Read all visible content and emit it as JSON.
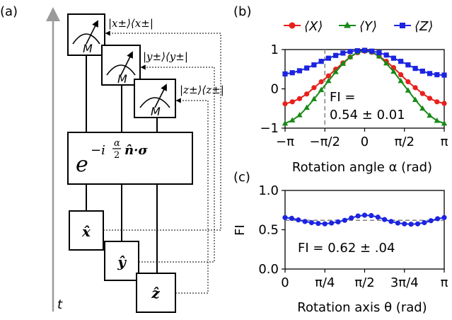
{
  "circuit": {
    "panel_label": "(a)",
    "time_label": "t",
    "meter_label": "M",
    "proj_x": "|x±⟩⟨x±|",
    "proj_y": "|y±⟩⟨y±|",
    "proj_z": "|z±⟩⟨z±|",
    "gate_base": "e",
    "gate_exponent": "−i α/2 n̂·σ",
    "gate_sign": "−i",
    "gate_frac_num": "α",
    "gate_frac_den": "2",
    "gate_vec": "n̂·σ",
    "input_x": "x̂",
    "input_y": "ŷ",
    "input_z": "ẑ"
  },
  "chart_data": [
    {
      "panel_label": "(b)",
      "type": "line",
      "xlabel": "Rotation angle α (rad)",
      "ylabel": "",
      "xlim": [
        -3.14159,
        3.14159
      ],
      "ylim": [
        -1.0,
        1.0
      ],
      "xticks": [
        {
          "value": -3.14159,
          "label": "−π"
        },
        {
          "value": -1.5708,
          "label": "−π/2"
        },
        {
          "value": 0,
          "label": "0"
        },
        {
          "value": 1.5708,
          "label": "π/2"
        },
        {
          "value": 3.14159,
          "label": "π"
        }
      ],
      "yticks": [
        {
          "value": -1,
          "label": "−1"
        },
        {
          "value": 0,
          "label": "0"
        },
        {
          "value": 1,
          "label": "1"
        }
      ],
      "vline": {
        "value": -1.5708
      },
      "annotation": "FI = 0.54 ± 0.01",
      "annotation_line1": "FI =",
      "annotation_line2": "0.54 ± 0.01",
      "legend_position": "top",
      "x": [
        -3.1416,
        -2.856,
        -2.5704,
        -2.2848,
        -1.9992,
        -1.7136,
        -1.428,
        -1.1424,
        -0.8568,
        -0.5712,
        -0.2856,
        0.0,
        0.2856,
        0.5712,
        0.8568,
        1.1424,
        1.428,
        1.7136,
        1.9992,
        2.2848,
        2.5704,
        2.856,
        3.1416
      ],
      "series": [
        {
          "name": "⟨X⟩",
          "color": "#e8201c",
          "marker": "circle",
          "values": [
            -0.38,
            -0.33,
            -0.25,
            -0.13,
            0.03,
            0.18,
            0.33,
            0.5,
            0.66,
            0.81,
            0.92,
            0.96,
            0.93,
            0.83,
            0.7,
            0.54,
            0.36,
            0.18,
            0.03,
            -0.12,
            -0.24,
            -0.33,
            -0.37
          ]
        },
        {
          "name": "⟨Y⟩",
          "color": "#178a17",
          "marker": "triangle",
          "values": [
            -0.88,
            -0.8,
            -0.67,
            -0.48,
            -0.26,
            -0.03,
            0.2,
            0.43,
            0.64,
            0.81,
            0.93,
            0.97,
            0.94,
            0.83,
            0.65,
            0.44,
            0.2,
            -0.04,
            -0.28,
            -0.5,
            -0.68,
            -0.81,
            -0.88
          ]
        },
        {
          "name": "⟨Z⟩",
          "color": "#1c24e0",
          "marker": "square",
          "values": [
            0.38,
            0.41,
            0.46,
            0.53,
            0.61,
            0.7,
            0.78,
            0.85,
            0.91,
            0.95,
            0.97,
            0.98,
            0.96,
            0.92,
            0.86,
            0.78,
            0.7,
            0.61,
            0.52,
            0.45,
            0.39,
            0.36,
            0.35
          ]
        }
      ]
    },
    {
      "panel_label": "(c)",
      "type": "line",
      "xlabel": "Rotation axis θ (rad)",
      "ylabel": "FI",
      "xlim": [
        0,
        3.14159
      ],
      "ylim": [
        0.0,
        1.0
      ],
      "xticks": [
        {
          "value": 0,
          "label": "0"
        },
        {
          "value": 0.7854,
          "label": "π/4"
        },
        {
          "value": 1.5708,
          "label": "π/2"
        },
        {
          "value": 2.3562,
          "label": "3π/4"
        },
        {
          "value": 3.14159,
          "label": "π"
        }
      ],
      "yticks": [
        {
          "value": 0.0,
          "label": "0.0"
        },
        {
          "value": 0.5,
          "label": "0.5"
        },
        {
          "value": 1.0,
          "label": "1.0"
        }
      ],
      "hline": {
        "value": 0.62
      },
      "annotation": "FI = 0.62 ± .04",
      "x": [
        0.0,
        0.1309,
        0.2618,
        0.3927,
        0.5236,
        0.6545,
        0.7854,
        0.9163,
        1.0472,
        1.1781,
        1.309,
        1.4399,
        1.5708,
        1.7017,
        1.8326,
        1.9635,
        2.0944,
        2.2253,
        2.3562,
        2.4871,
        2.618,
        2.7489,
        2.8798,
        3.0107,
        3.1416
      ],
      "series": [
        {
          "color": "#1c24e0",
          "marker": "circle",
          "values": [
            0.655,
            0.645,
            0.625,
            0.605,
            0.59,
            0.58,
            0.575,
            0.585,
            0.6,
            0.62,
            0.65,
            0.675,
            0.685,
            0.68,
            0.66,
            0.63,
            0.605,
            0.585,
            0.575,
            0.57,
            0.575,
            0.59,
            0.615,
            0.64,
            0.655
          ]
        }
      ]
    }
  ]
}
